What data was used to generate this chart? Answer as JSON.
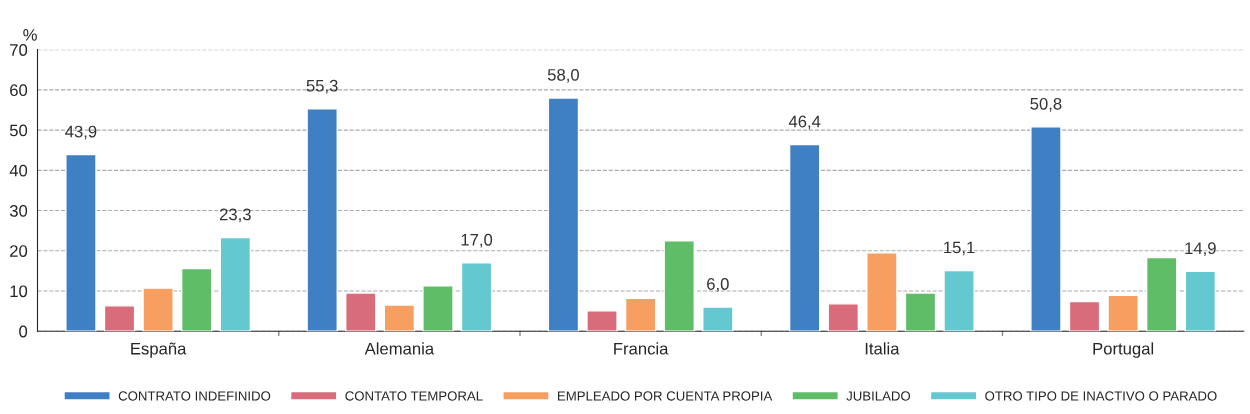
{
  "chart_data": {
    "type": "bar",
    "ylabel": "%",
    "categories": [
      "España",
      "Alemania",
      "Francia",
      "Italia",
      "Portugal"
    ],
    "series": [
      {
        "name": "CONTRATO INDEFINIDO",
        "color": "#3f7fc3",
        "values": [
          43.9,
          55.3,
          58.0,
          46.4,
          50.8
        ],
        "value_labels": [
          "43,9",
          "55,3",
          "58,0",
          "46,4",
          "50,8"
        ]
      },
      {
        "name": "CONTATO TEMPORAL",
        "color": "#d86c7b",
        "values": [
          6.3,
          9.5,
          5.1,
          6.8,
          7.4
        ]
      },
      {
        "name": "EMPLEADO POR CUENTA PROPIA",
        "color": "#f79f61",
        "values": [
          10.7,
          6.5,
          8.2,
          19.5,
          8.9
        ]
      },
      {
        "name": "JUBILADO",
        "color": "#5fbd67",
        "values": [
          15.6,
          11.3,
          22.5,
          9.5,
          18.3
        ]
      },
      {
        "name": "OTRO TIPO DE INACTIVO O PARADO",
        "color": "#63c8d0",
        "values": [
          23.3,
          17.0,
          6.0,
          15.1,
          14.9
        ],
        "value_labels": [
          "23,3",
          "17,0",
          "6,0",
          "15,1",
          "14,9"
        ]
      }
    ],
    "ylim": [
      0,
      70
    ],
    "yticks": [
      0,
      10,
      20,
      30,
      40,
      50,
      60,
      70
    ],
    "grid": "y",
    "legend": "bottom"
  }
}
